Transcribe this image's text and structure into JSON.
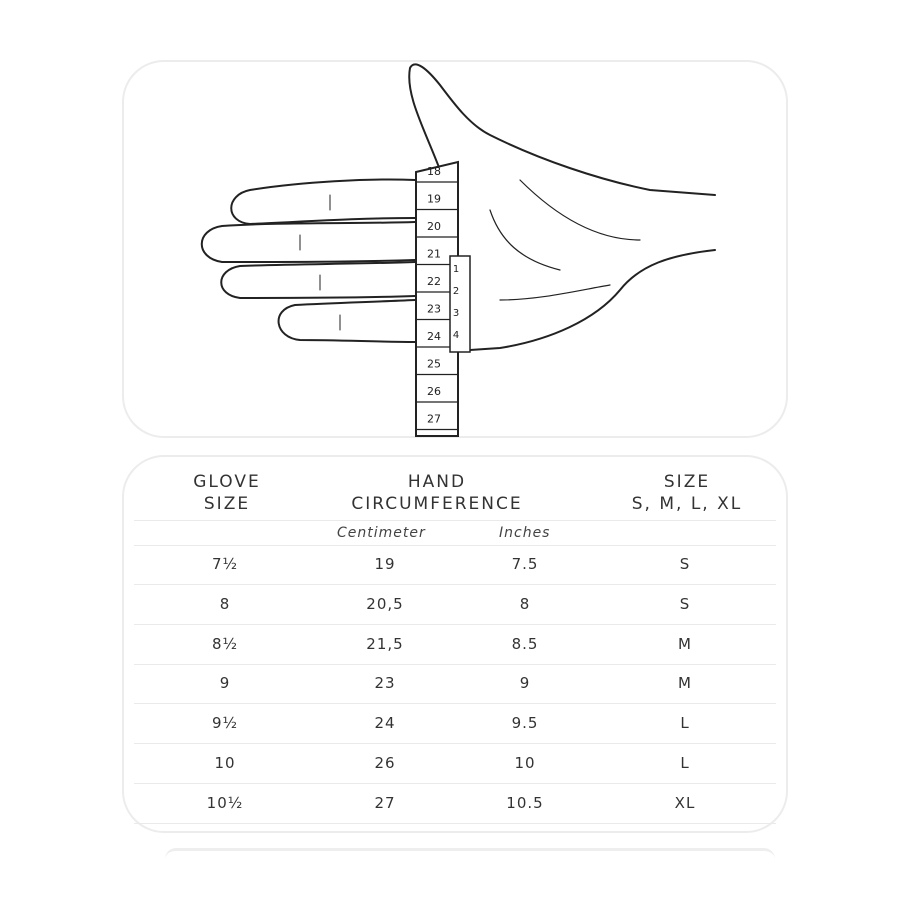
{
  "illustration": {
    "cm_tape_marks": [
      "18",
      "19",
      "20",
      "21",
      "22",
      "23",
      "24",
      "25",
      "26",
      "27"
    ],
    "inch_tape_marks": [
      "1",
      "2",
      "3",
      "4"
    ]
  },
  "table": {
    "headers": {
      "glove_size": [
        "GLOVE",
        "SIZE"
      ],
      "hand_circumference": [
        "HAND",
        "CIRCUMFERENCE"
      ],
      "size": [
        "SIZE",
        "S, M, L, XL"
      ]
    },
    "subheaders": {
      "centimeter": "Centimeter",
      "inches": "Inches"
    },
    "rows": [
      {
        "glove_size": "7½",
        "cm": "19",
        "inches": "7.5",
        "size": "S"
      },
      {
        "glove_size": "8",
        "cm": "20,5",
        "inches": "8",
        "size": "S"
      },
      {
        "glove_size": "8½",
        "cm": "21,5",
        "inches": "8.5",
        "size": "M"
      },
      {
        "glove_size": "9",
        "cm": "23",
        "inches": "9",
        "size": "M"
      },
      {
        "glove_size": "9½",
        "cm": "24",
        "inches": "9.5",
        "size": "L"
      },
      {
        "glove_size": "10",
        "cm": "26",
        "inches": "10",
        "size": "L"
      },
      {
        "glove_size": "10½",
        "cm": "27",
        "inches": "10.5",
        "size": "XL"
      }
    ]
  }
}
